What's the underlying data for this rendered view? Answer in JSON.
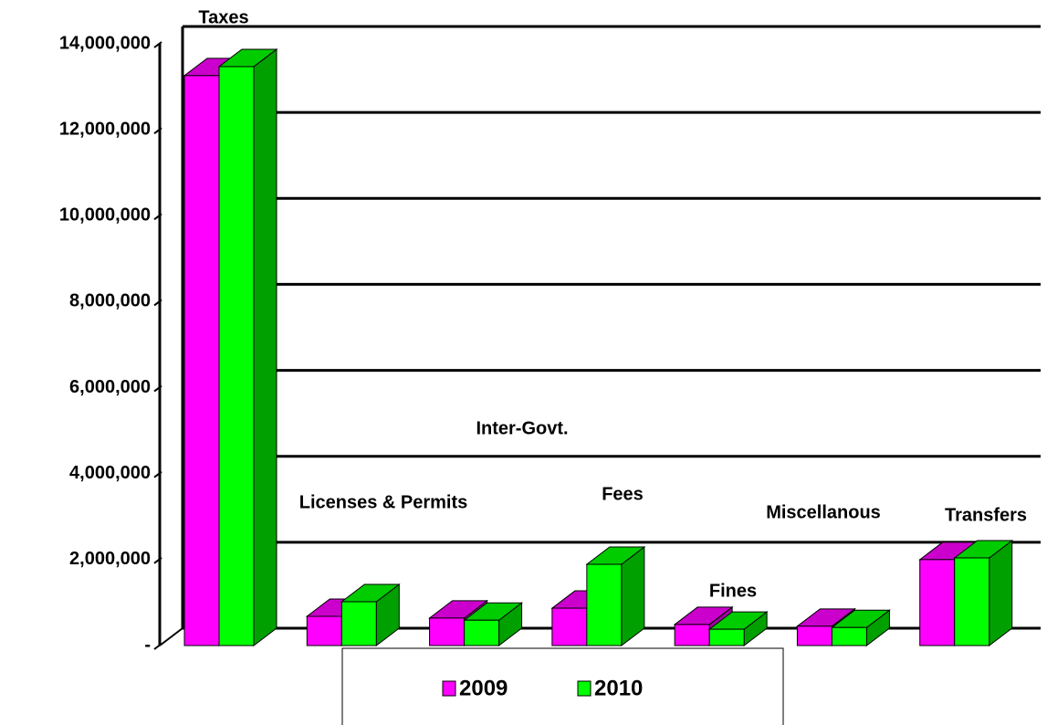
{
  "chart_data": {
    "type": "bar3d",
    "categories": [
      "Taxes",
      "Licenses & Permits",
      "Inter-Govt.",
      "Fees",
      "Fines",
      "Miscellanous",
      "Transfers"
    ],
    "series": [
      {
        "name": "2009",
        "color": "#ff00ff",
        "values": [
          13260000,
          680000,
          640000,
          870000,
          490000,
          450000,
          2000000
        ]
      },
      {
        "name": "2010",
        "color": "#00ff00",
        "values": [
          13470000,
          1020000,
          590000,
          1890000,
          380000,
          420000,
          2040000
        ]
      }
    ],
    "ylim": [
      0,
      14000000
    ],
    "yticks": [
      {
        "value": 0,
        "label": "-"
      },
      {
        "value": 2000000,
        "label": "2,000,000"
      },
      {
        "value": 4000000,
        "label": "4,000,000"
      },
      {
        "value": 6000000,
        "label": "6,000,000"
      },
      {
        "value": 8000000,
        "label": "8,000,000"
      },
      {
        "value": 10000000,
        "label": "10,000,000"
      },
      {
        "value": 12000000,
        "label": "12,000,000"
      },
      {
        "value": 14000000,
        "label": "14,000,000"
      }
    ],
    "grid": true
  }
}
